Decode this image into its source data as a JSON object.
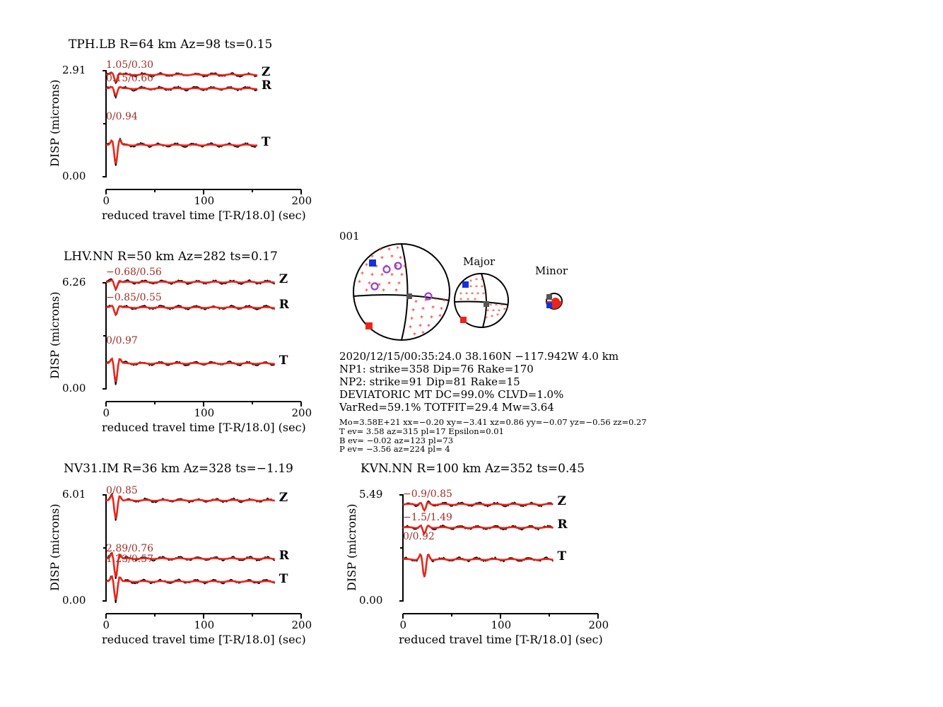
{
  "colors": {
    "observed": "#000000",
    "synthetic": "#e8261c",
    "annotation": "#a0302a",
    "compression": "#e8261c",
    "t_axis": "#1430e0",
    "p_axis": "#e8261c",
    "station": "#9a3fc8",
    "null": "#555555"
  },
  "chart_data": [
    {
      "type": "line",
      "station": "TPH.LB",
      "title": "TPH.LB R=64 km Az=98 ts=0.15",
      "ylabel": "DISP (microns)",
      "xlabel": "reduced travel time [T-R/18.0] (sec)",
      "xlim": [
        0,
        200
      ],
      "xticks": [
        "0",
        "100",
        "200"
      ],
      "ylim": [
        0,
        2.91
      ],
      "yticks": [
        "2.91",
        "0.00"
      ],
      "series": [
        {
          "name": "Z",
          "annotation": "1.05/0.30",
          "end_time": 155,
          "baseline": 2.8
        },
        {
          "name": "R",
          "annotation": "0.15/0.60",
          "end_time": 155,
          "baseline": 2.42
        },
        {
          "name": "T",
          "annotation": "0/0.94",
          "end_time": 155,
          "baseline": 0.87
        }
      ]
    },
    {
      "type": "line",
      "station": "LHV.NN",
      "title": "LHV.NN R=50 km Az=282 ts=0.17",
      "ylabel": "DISP (microns)",
      "xlabel": "reduced travel time [T-R/18.0] (sec)",
      "xlim": [
        0,
        200
      ],
      "xticks": [
        "0",
        "100",
        "200"
      ],
      "ylim": [
        0,
        6.26
      ],
      "yticks": [
        "6.26",
        "0.00"
      ],
      "series": [
        {
          "name": "Z",
          "annotation": "−0.68/0.56",
          "end_time": 173,
          "baseline": 6.3
        },
        {
          "name": "R",
          "annotation": "−0.85/0.55",
          "end_time": 173,
          "baseline": 4.8
        },
        {
          "name": "T",
          "annotation": "0/0.97",
          "end_time": 173,
          "baseline": 1.5
        }
      ]
    },
    {
      "type": "line",
      "station": "NV31.IM",
      "title": "NV31.IM R=36 km Az=328 ts=−1.19",
      "ylabel": "DISP (microns)",
      "xlabel": "reduced travel time [T-R/18.0] (sec)",
      "xlim": [
        0,
        200
      ],
      "xticks": [
        "0",
        "100",
        "200"
      ],
      "ylim": [
        0,
        6.01
      ],
      "yticks": [
        "6.01",
        "0.00"
      ],
      "series": [
        {
          "name": "Z",
          "annotation": "0/0.85",
          "end_time": 173,
          "baseline": 5.7
        },
        {
          "name": "R",
          "annotation": "2.89/0.76",
          "end_time": 173,
          "baseline": 2.4
        },
        {
          "name": "T",
          "annotation": "1.23/0.57",
          "end_time": 173,
          "baseline": 1.1
        }
      ]
    },
    {
      "type": "line",
      "station": "KVN.NN",
      "title": "KVN.NN R=100 km Az=352 ts=0.45",
      "ylabel": "DISP (microns)",
      "xlabel": "reduced travel time [T-R/18.0] (sec)",
      "xlim": [
        0,
        200
      ],
      "xticks": [
        "0",
        "100",
        "200"
      ],
      "ylim": [
        0,
        5.49
      ],
      "yticks": [
        "5.49",
        "0.00"
      ],
      "series": [
        {
          "name": "Z",
          "annotation": "−0.9/0.85",
          "end_time": 154,
          "baseline": 5.0
        },
        {
          "name": "R",
          "annotation": "−1.5/1.49",
          "end_time": 154,
          "baseline": 3.8
        },
        {
          "name": "T",
          "annotation": "0/0.92",
          "end_time": 154,
          "baseline": 2.15
        }
      ]
    }
  ],
  "mechanism": {
    "id": "001",
    "major_label": "Major",
    "minor_label": "Minor",
    "lines": [
      "2020/12/15/00:35:24.0 38.160N −117.942W 4.0 km",
      "NP1: strike=358 Dip=76 Rake=170",
      "NP2: strike=91 Dip=81 Rake=15",
      "DEVIATORIC MT DC=99.0% CLVD=1.0%",
      "VarRed=59.1% TOTFIT=29.4 Mw=3.64"
    ],
    "small_lines": [
      "Mo=3.58E+21 xx=−0.20 xy=−3.41 xz=0.86 yy=−0.07 yz=−0.56 zz=0.27",
      "T ev=  3.58 az=315 pl=17 Epsilon=0.01",
      "B ev= −0.02 az=123 pl=73",
      "P ev= −3.56 az=224 pl= 4"
    ]
  }
}
